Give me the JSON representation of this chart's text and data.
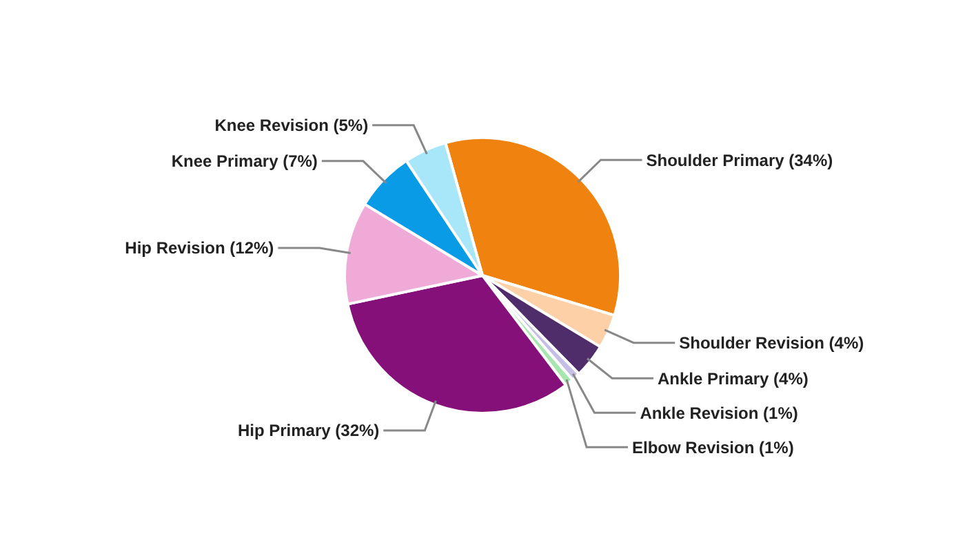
{
  "chart_data": {
    "type": "pie",
    "categories": [
      "Shoulder Primary (34%)",
      "Shoulder Revision (4%)",
      "Ankle Primary (4%)",
      "Ankle Revision (1%)",
      "Elbow Revision (1%)",
      "Hip Primary (32%)",
      "Hip Revision (12%)",
      "Knee Primary (7%)",
      "Knee Revision (5%)"
    ],
    "values": [
      34,
      4,
      4,
      1,
      1,
      32,
      12,
      7,
      5
    ],
    "colors": [
      "#f0820f",
      "#fdd0a8",
      "#4f2d6b",
      "#c5bfe6",
      "#a8e6b0",
      "#86107a",
      "#f0aad8",
      "#0a9be6",
      "#a8e6fa"
    ]
  }
}
